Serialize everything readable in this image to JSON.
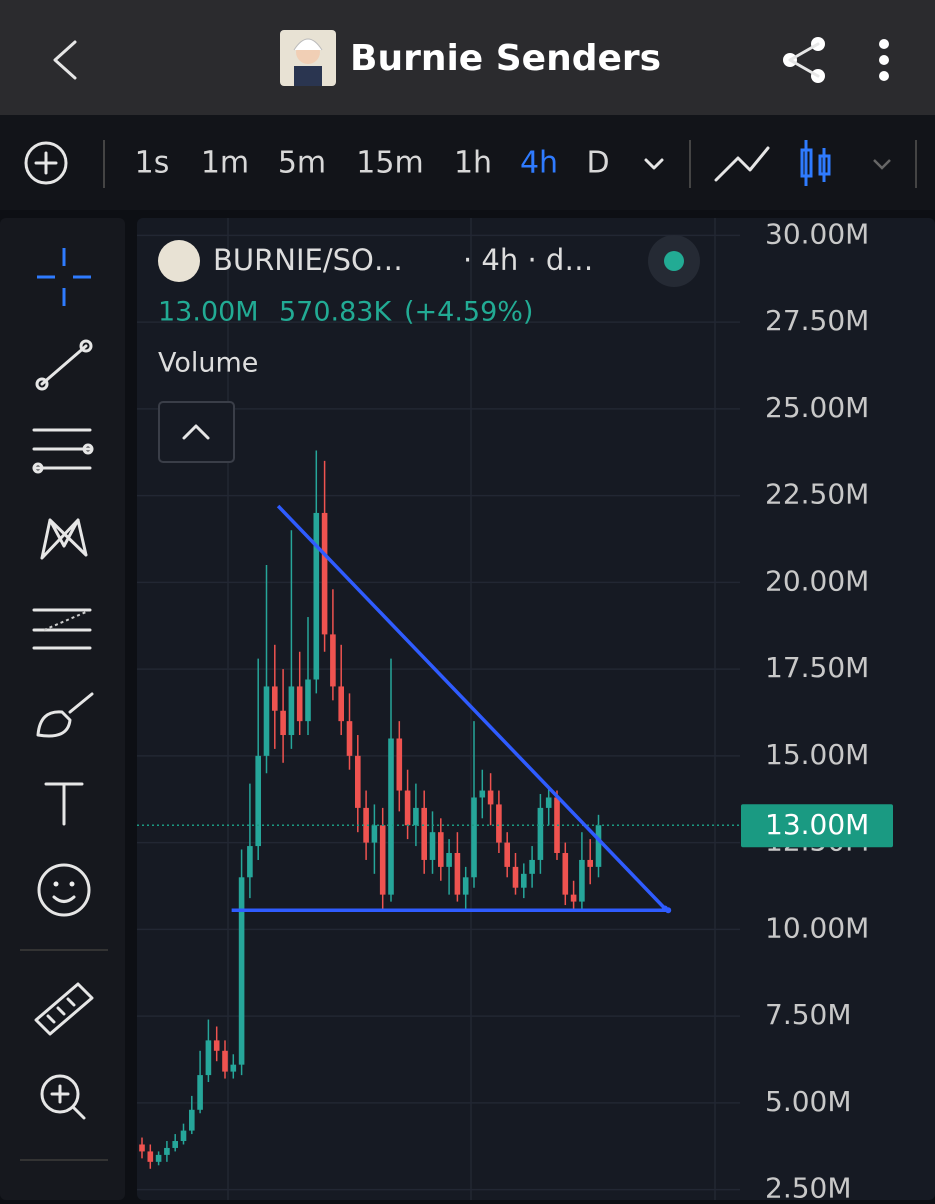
{
  "header": {
    "title": "Burnie Senders"
  },
  "toolbar": {
    "intervals": [
      "1s",
      "1m",
      "5m",
      "15m",
      "1h",
      "4h",
      "D"
    ],
    "active_index": 5,
    "active_color": "#2f7bff"
  },
  "chart_data": {
    "type": "candlestick",
    "symbol": "BURNIE/SO…",
    "meta": "· 4h · d…",
    "change": "570.83K",
    "change_pct": "(+4.59%)",
    "study": "Volume",
    "up_color": "#26a69a",
    "down_color": "#ef5350",
    "open": [
      3.8,
      3.6,
      3.3,
      3.5,
      3.7,
      3.9,
      4.2,
      4.8,
      5.8,
      6.8,
      6.5,
      5.9,
      6.1,
      11.5,
      12.4,
      15.0,
      17.0,
      16.3,
      15.6,
      17.0,
      16.0,
      17.2,
      22.0,
      18.5,
      17.0,
      16.0,
      15.0,
      13.5,
      12.5,
      13.0,
      11.0,
      15.5,
      14.0,
      13.0,
      13.5,
      12.0,
      12.8,
      11.8,
      12.2,
      11.0,
      11.5,
      13.8,
      14.0,
      13.6,
      12.5,
      11.8,
      11.2,
      11.6,
      12.0,
      13.5,
      13.8,
      12.2,
      11.0,
      10.8,
      12.0,
      11.8
    ],
    "high": [
      4.0,
      3.8,
      3.6,
      3.9,
      4.1,
      4.4,
      5.2,
      6.5,
      7.4,
      7.2,
      6.8,
      6.4,
      12.3,
      14.2,
      17.8,
      20.5,
      18.2,
      17.5,
      21.5,
      18.0,
      19.0,
      23.8,
      23.5,
      19.8,
      18.2,
      16.8,
      15.6,
      14.0,
      13.6,
      13.5,
      17.8,
      16.0,
      14.6,
      14.2,
      14.0,
      13.4,
      13.2,
      12.6,
      12.8,
      11.8,
      16.0,
      14.6,
      14.5,
      14.0,
      12.8,
      12.2,
      11.9,
      12.4,
      13.9,
      14.1,
      14.0,
      12.5,
      11.4,
      12.8,
      12.6,
      13.3
    ],
    "low": [
      3.4,
      3.1,
      3.2,
      3.3,
      3.6,
      3.8,
      4.1,
      4.7,
      5.6,
      6.2,
      5.7,
      5.7,
      5.8,
      10.9,
      12.0,
      14.5,
      15.2,
      14.8,
      15.2,
      15.6,
      15.6,
      16.8,
      18.0,
      16.6,
      15.6,
      14.6,
      12.8,
      12.0,
      11.6,
      10.6,
      10.8,
      13.4,
      12.6,
      12.4,
      11.6,
      11.6,
      11.4,
      11.0,
      10.8,
      10.6,
      11.2,
      13.2,
      13.0,
      12.2,
      11.5,
      11.0,
      10.9,
      11.2,
      11.6,
      13.0,
      12.0,
      10.7,
      10.5,
      10.6,
      11.3,
      11.5
    ],
    "close": [
      3.6,
      3.3,
      3.5,
      3.7,
      3.9,
      4.2,
      4.8,
      5.8,
      6.8,
      6.5,
      5.9,
      6.1,
      11.5,
      12.4,
      15.0,
      17.0,
      16.3,
      15.6,
      17.0,
      16.0,
      17.2,
      22.0,
      18.5,
      17.0,
      16.0,
      15.0,
      13.5,
      12.5,
      13.0,
      11.0,
      15.5,
      14.0,
      13.0,
      13.5,
      12.0,
      12.8,
      11.8,
      12.2,
      11.0,
      11.5,
      13.8,
      14.0,
      13.6,
      12.5,
      11.8,
      11.2,
      11.6,
      12.0,
      13.5,
      13.8,
      12.2,
      11.0,
      10.8,
      12.0,
      11.8,
      13.0
    ],
    "ylim": [
      2.2,
      30.5
    ],
    "yticks": [
      {
        "value": 2.5,
        "label": "2.50M"
      },
      {
        "value": 5,
        "label": "5.00M"
      },
      {
        "value": 7.5,
        "label": "7.50M"
      },
      {
        "value": 10,
        "label": "10.00M"
      },
      {
        "value": 12.5,
        "label": "12.50M"
      },
      {
        "value": 15,
        "label": "15.00M"
      },
      {
        "value": 17.5,
        "label": "17.50M"
      },
      {
        "value": 20,
        "label": "20.00M"
      },
      {
        "value": 22.5,
        "label": "22.50M"
      },
      {
        "value": 25,
        "label": "25.00M"
      },
      {
        "value": 27.5,
        "label": "27.50M"
      },
      {
        "value": 30,
        "label": "30.00M"
      }
    ],
    "price_line": {
      "value": 13,
      "label": "13.00M",
      "color": "#1a9a82"
    },
    "trendline_color": "#2f5cff",
    "trendlines": [
      {
        "x": [
          16.4,
          63
        ],
        "y": [
          22.2,
          10.6
        ]
      },
      {
        "x": [
          10.8,
          63.4
        ],
        "y": [
          10.55,
          10.55
        ]
      }
    ],
    "grid": true
  }
}
